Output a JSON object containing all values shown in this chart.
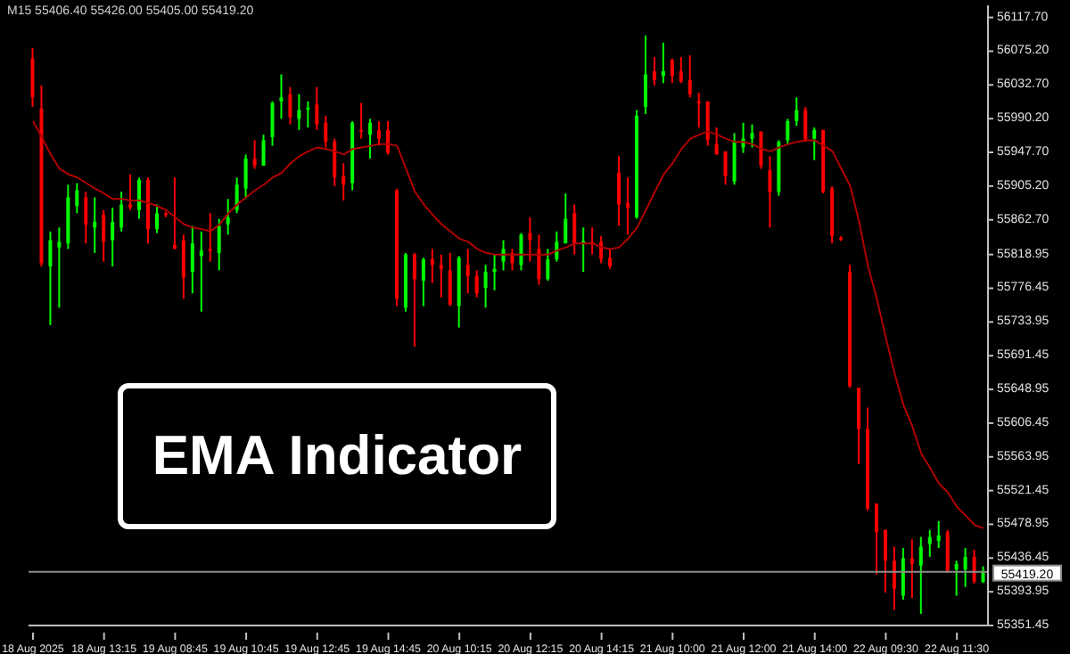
{
  "chart_data": {
    "type": "candlestick",
    "title": "EMA Indicator",
    "annotations": [
      "M15 55406.40 55426.00 55405.00 55419.20"
    ],
    "categories": [
      "18 Aug 2025",
      null,
      null,
      null,
      null,
      null,
      null,
      null,
      "18 Aug 13:15",
      null,
      null,
      null,
      null,
      null,
      null,
      null,
      "19 Aug 08:45",
      null,
      null,
      null,
      null,
      null,
      null,
      null,
      "19 Aug 10:45",
      null,
      null,
      null,
      null,
      null,
      null,
      null,
      "19 Aug 12:45",
      null,
      null,
      null,
      null,
      null,
      null,
      null,
      "19 Aug 14:45",
      null,
      null,
      null,
      null,
      null,
      null,
      null,
      "20 Aug 10:15",
      null,
      null,
      null,
      null,
      null,
      null,
      null,
      "20 Aug 12:15",
      null,
      null,
      null,
      null,
      null,
      null,
      null,
      "20 Aug 14:15",
      null,
      null,
      null,
      null,
      null,
      null,
      null,
      "21 Aug 10:00",
      null,
      null,
      null,
      null,
      null,
      null,
      null,
      "21 Aug 12:00",
      null,
      null,
      null,
      null,
      null,
      null,
      null,
      "21 Aug 14:00",
      null,
      null,
      null,
      null,
      null,
      null,
      null,
      "22 Aug 09:30",
      null,
      null,
      null,
      null,
      null,
      null,
      null,
      "22 Aug 11:30",
      null,
      null,
      null
    ],
    "ohlc": [
      [
        56066,
        56079,
        56005,
        56017
      ],
      [
        56003,
        56032,
        55804,
        55808
      ],
      [
        55804,
        55848,
        55730,
        55837
      ],
      [
        55828,
        55853,
        55752,
        55835
      ],
      [
        55833,
        55907,
        55826,
        55891
      ],
      [
        55880,
        55909,
        55871,
        55900
      ],
      [
        55891,
        55898,
        55833,
        55857
      ],
      [
        55853,
        55891,
        55821,
        55860
      ],
      [
        55869,
        55875,
        55810,
        55835
      ],
      [
        55837,
        55878,
        55804,
        55860
      ],
      [
        55853,
        55898,
        55848,
        55882
      ],
      [
        55882,
        55920,
        55875,
        55878
      ],
      [
        55875,
        55916,
        55864,
        55913
      ],
      [
        55913,
        55916,
        55833,
        55851
      ],
      [
        55851,
        55882,
        55846,
        55871
      ],
      [
        55871,
        55873,
        55866,
        55869
      ],
      [
        55831,
        55916,
        55826,
        55826
      ],
      [
        55837,
        55844,
        55763,
        55790
      ],
      [
        55797,
        55855,
        55770,
        55833
      ],
      [
        55817,
        55848,
        55747,
        55824
      ],
      [
        55826,
        55871,
        55810,
        55824
      ],
      [
        55821,
        55864,
        55799,
        55855
      ],
      [
        55857,
        55889,
        55844,
        55866
      ],
      [
        55875,
        55916,
        55871,
        55907
      ],
      [
        55902,
        55945,
        55889,
        55940
      ],
      [
        55940,
        55963,
        55927,
        55931
      ],
      [
        55931,
        55970,
        55931,
        55963
      ],
      [
        55967,
        56012,
        55956,
        56010
      ],
      [
        56012,
        56046,
        55990,
        56017
      ],
      [
        56021,
        56030,
        55983,
        55992
      ],
      [
        55990,
        56021,
        55976,
        56001
      ],
      [
        56002,
        56012,
        55979,
        56004
      ],
      [
        56008,
        56030,
        55976,
        55983
      ],
      [
        55985,
        55994,
        55954,
        55961
      ],
      [
        55961,
        55965,
        55905,
        55916
      ],
      [
        55918,
        55934,
        55887,
        55907
      ],
      [
        55909,
        55987,
        55900,
        55985
      ],
      [
        55976,
        56010,
        55965,
        55974
      ],
      [
        55970,
        55990,
        55940,
        55985
      ],
      [
        55976,
        55987,
        55956,
        55965
      ],
      [
        55976,
        55987,
        55945,
        55947
      ],
      [
        55900,
        55902,
        55754,
        55763
      ],
      [
        55752,
        55821,
        55747,
        55819
      ],
      [
        55819,
        55821,
        55703,
        55788
      ],
      [
        55786,
        55815,
        55754,
        55813
      ],
      [
        55813,
        55826,
        55783,
        55806
      ],
      [
        55806,
        55819,
        55765,
        55801
      ],
      [
        55799,
        55821,
        55754,
        55756
      ],
      [
        55754,
        55817,
        55727,
        55815
      ],
      [
        55806,
        55826,
        55770,
        55792
      ],
      [
        55792,
        55799,
        55765,
        55770
      ],
      [
        55777,
        55806,
        55752,
        55797
      ],
      [
        55797,
        55819,
        55774,
        55801
      ],
      [
        55810,
        55837,
        55799,
        55826
      ],
      [
        55821,
        55826,
        55799,
        55808
      ],
      [
        55806,
        55846,
        55799,
        55844
      ],
      [
        55846,
        55866,
        55810,
        55837
      ],
      [
        55826,
        55844,
        55781,
        55788
      ],
      [
        55788,
        55826,
        55786,
        55813
      ],
      [
        55813,
        55848,
        55810,
        55835
      ],
      [
        55833,
        55896,
        55833,
        55864
      ],
      [
        55871,
        55882,
        55819,
        55833
      ],
      [
        55833,
        55853,
        55797,
        55836
      ],
      [
        55835,
        55853,
        55819,
        55833
      ],
      [
        55835,
        55842,
        55808,
        55813
      ],
      [
        55815,
        55826,
        55801,
        55804
      ],
      [
        55922,
        55943,
        55855,
        55882
      ],
      [
        55884,
        55916,
        55844,
        55878
      ],
      [
        55866,
        56001,
        55864,
        55994
      ],
      [
        56005,
        56095,
        55996,
        56046
      ],
      [
        56050,
        56068,
        56032,
        56039
      ],
      [
        56044,
        56086,
        56035,
        56050
      ],
      [
        56064,
        56066,
        56035,
        56044
      ],
      [
        56050,
        56068,
        56035,
        56037
      ],
      [
        56039,
        56070,
        56017,
        56021
      ],
      [
        56012,
        56023,
        55979,
        56010
      ],
      [
        56012,
        56012,
        55956,
        55963
      ],
      [
        55958,
        55979,
        55945,
        55945
      ],
      [
        55949,
        55949,
        55907,
        55918
      ],
      [
        55911,
        55972,
        55907,
        55961
      ],
      [
        55954,
        55985,
        55947,
        55965
      ],
      [
        55965,
        55983,
        55954,
        55972
      ],
      [
        55974,
        55974,
        55927,
        55931
      ],
      [
        55925,
        55943,
        55853,
        55898
      ],
      [
        55898,
        55963,
        55893,
        55961
      ],
      [
        55963,
        55990,
        55958,
        55987
      ],
      [
        55987,
        56017,
        55981,
        56001
      ],
      [
        56001,
        56005,
        55961,
        55963
      ],
      [
        55965,
        55979,
        55938,
        55976
      ],
      [
        55976,
        55976,
        55896,
        55898
      ],
      [
        55902,
        55905,
        55833,
        55842
      ],
      [
        55840,
        55842,
        55836,
        55838
      ],
      [
        55797,
        55806,
        55651,
        55653
      ],
      [
        55651,
        55651,
        55555,
        55599
      ],
      [
        55599,
        55626,
        55496,
        55499
      ],
      [
        55505,
        55505,
        55416,
        55469
      ],
      [
        55472,
        55472,
        55393,
        55433
      ],
      [
        55433,
        55451,
        55371,
        55398
      ],
      [
        55389,
        55449,
        55384,
        55436
      ],
      [
        55436,
        55460,
        55386,
        55429
      ],
      [
        55427,
        55463,
        55366,
        55451
      ],
      [
        55454,
        55472,
        55438,
        55463
      ],
      [
        55458,
        55483,
        55449,
        55465
      ],
      [
        55469,
        55472,
        55418,
        55420
      ],
      [
        55422,
        55433,
        55389,
        55429
      ],
      [
        55422,
        55449,
        55400,
        55438
      ],
      [
        55438,
        55447,
        55404,
        55407
      ],
      [
        55406.4,
        55426,
        55405,
        55419.2
      ]
    ],
    "colors": [
      "#ff0000",
      "#ff0000",
      "#00ff00",
      "#00ff00",
      "#00ff00",
      "#00ff00",
      "#ff0000",
      "#00ff00",
      "#ff0000",
      "#00ff00",
      "#00ff00",
      "#ff0000",
      "#00ff00",
      "#ff0000",
      "#00ff00",
      "#ff0000",
      "#ff0000",
      "#ff0000",
      "#00ff00",
      "#00ff00",
      "#ff0000",
      "#00ff00",
      "#00ff00",
      "#00ff00",
      "#00ff00",
      "#ff0000",
      "#00ff00",
      "#00ff00",
      "#00ff00",
      "#ff0000",
      "#00ff00",
      "#00ff00",
      "#ff0000",
      "#ff0000",
      "#ff0000",
      "#ff0000",
      "#00ff00",
      "#ff0000",
      "#00ff00",
      "#ff0000",
      "#ff0000",
      "#ff0000",
      "#00ff00",
      "#ff0000",
      "#00ff00",
      "#ff0000",
      "#ff0000",
      "#ff0000",
      "#00ff00",
      "#ff0000",
      "#ff0000",
      "#00ff00",
      "#00ff00",
      "#00ff00",
      "#ff0000",
      "#00ff00",
      "#ff0000",
      "#ff0000",
      "#00ff00",
      "#00ff00",
      "#00ff00",
      "#ff0000",
      "#00ff00",
      "#ff0000",
      "#ff0000",
      "#ff0000",
      "#ff0000",
      "#ff0000",
      "#00ff00",
      "#00ff00",
      "#ff0000",
      "#00ff00",
      "#ff0000",
      "#ff0000",
      "#ff0000",
      "#ff0000",
      "#ff0000",
      "#ff0000",
      "#ff0000",
      "#00ff00",
      "#00ff00",
      "#00ff00",
      "#ff0000",
      "#ff0000",
      "#00ff00",
      "#00ff00",
      "#00ff00",
      "#ff0000",
      "#00ff00",
      "#ff0000",
      "#ff0000",
      "#ff0000",
      "#ff0000",
      "#ff0000",
      "#ff0000",
      "#ff0000",
      "#ff0000",
      "#ff0000",
      "#00ff00",
      "#ff0000",
      "#00ff00",
      "#00ff00",
      "#00ff00",
      "#ff0000",
      "#00ff00",
      "#00ff00",
      "#ff0000",
      "#00ff00"
    ],
    "series": [
      {
        "type": "line",
        "color": "#b00000",
        "values": [
          55987,
          55967,
          55945,
          55927,
          55920,
          55916,
          55909,
          55902,
          55896,
          55889,
          55889,
          55887,
          55887,
          55884,
          55880,
          55875,
          55866,
          55857,
          55853,
          55851,
          55848,
          55857,
          55871,
          55882,
          55891,
          55900,
          55907,
          55916,
          55922,
          55934,
          55943,
          55949,
          55954,
          55952,
          55949,
          55945,
          55952,
          55954,
          55956,
          55958,
          55958,
          55956,
          55927,
          55898,
          55882,
          55869,
          55857,
          55848,
          55839,
          55835,
          55826,
          55821,
          55819,
          55819,
          55819,
          55819,
          55819,
          55819,
          55819,
          55824,
          55828,
          55833,
          55833,
          55833,
          55828,
          55826,
          55828,
          55839,
          55853,
          55875,
          55898,
          55920,
          55934,
          55952,
          55965,
          55970,
          55974,
          55970,
          55965,
          55961,
          55961,
          55958,
          55952,
          55949,
          55954,
          55958,
          55961,
          55963,
          55963,
          55956,
          55949,
          55927,
          55905,
          55860,
          55804,
          55763,
          55714,
          55669,
          55629,
          55602,
          55568,
          55550,
          55530,
          55519,
          55501,
          55490,
          55478,
          55474
        ]
      }
    ],
    "ylim": [
      55351.45,
      56133
    ],
    "yticks": [
      {
        "value": 56117.7,
        "label": "56117.70"
      },
      {
        "value": 56075.2,
        "label": "56075.20"
      },
      {
        "value": 56032.7,
        "label": "56032.70"
      },
      {
        "value": 55990.2,
        "label": "55990.20"
      },
      {
        "value": 55947.7,
        "label": "55947.70"
      },
      {
        "value": 55905.2,
        "label": "55905.20"
      },
      {
        "value": 55862.7,
        "label": "55862.70"
      },
      {
        "value": 55818.95,
        "label": "55818.95"
      },
      {
        "value": 55776.45,
        "label": "55776.45"
      },
      {
        "value": 55733.95,
        "label": "55733.95"
      },
      {
        "value": 55691.45,
        "label": "55691.45"
      },
      {
        "value": 55648.95,
        "label": "55648.95"
      },
      {
        "value": 55606.45,
        "label": "55606.45"
      },
      {
        "value": 55563.95,
        "label": "55563.95"
      },
      {
        "value": 55521.45,
        "label": "55521.45"
      },
      {
        "value": 55478.95,
        "label": "55478.95"
      },
      {
        "value": 55436.45,
        "label": "55436.45"
      },
      {
        "value": 55393.95,
        "label": "55393.95"
      },
      {
        "value": 55351.45,
        "label": "55351.45"
      }
    ],
    "ref_lines": [
      {
        "axis": "y",
        "value": 55419.2,
        "label": "55419.20",
        "color": "#8c8c8c"
      }
    ]
  }
}
